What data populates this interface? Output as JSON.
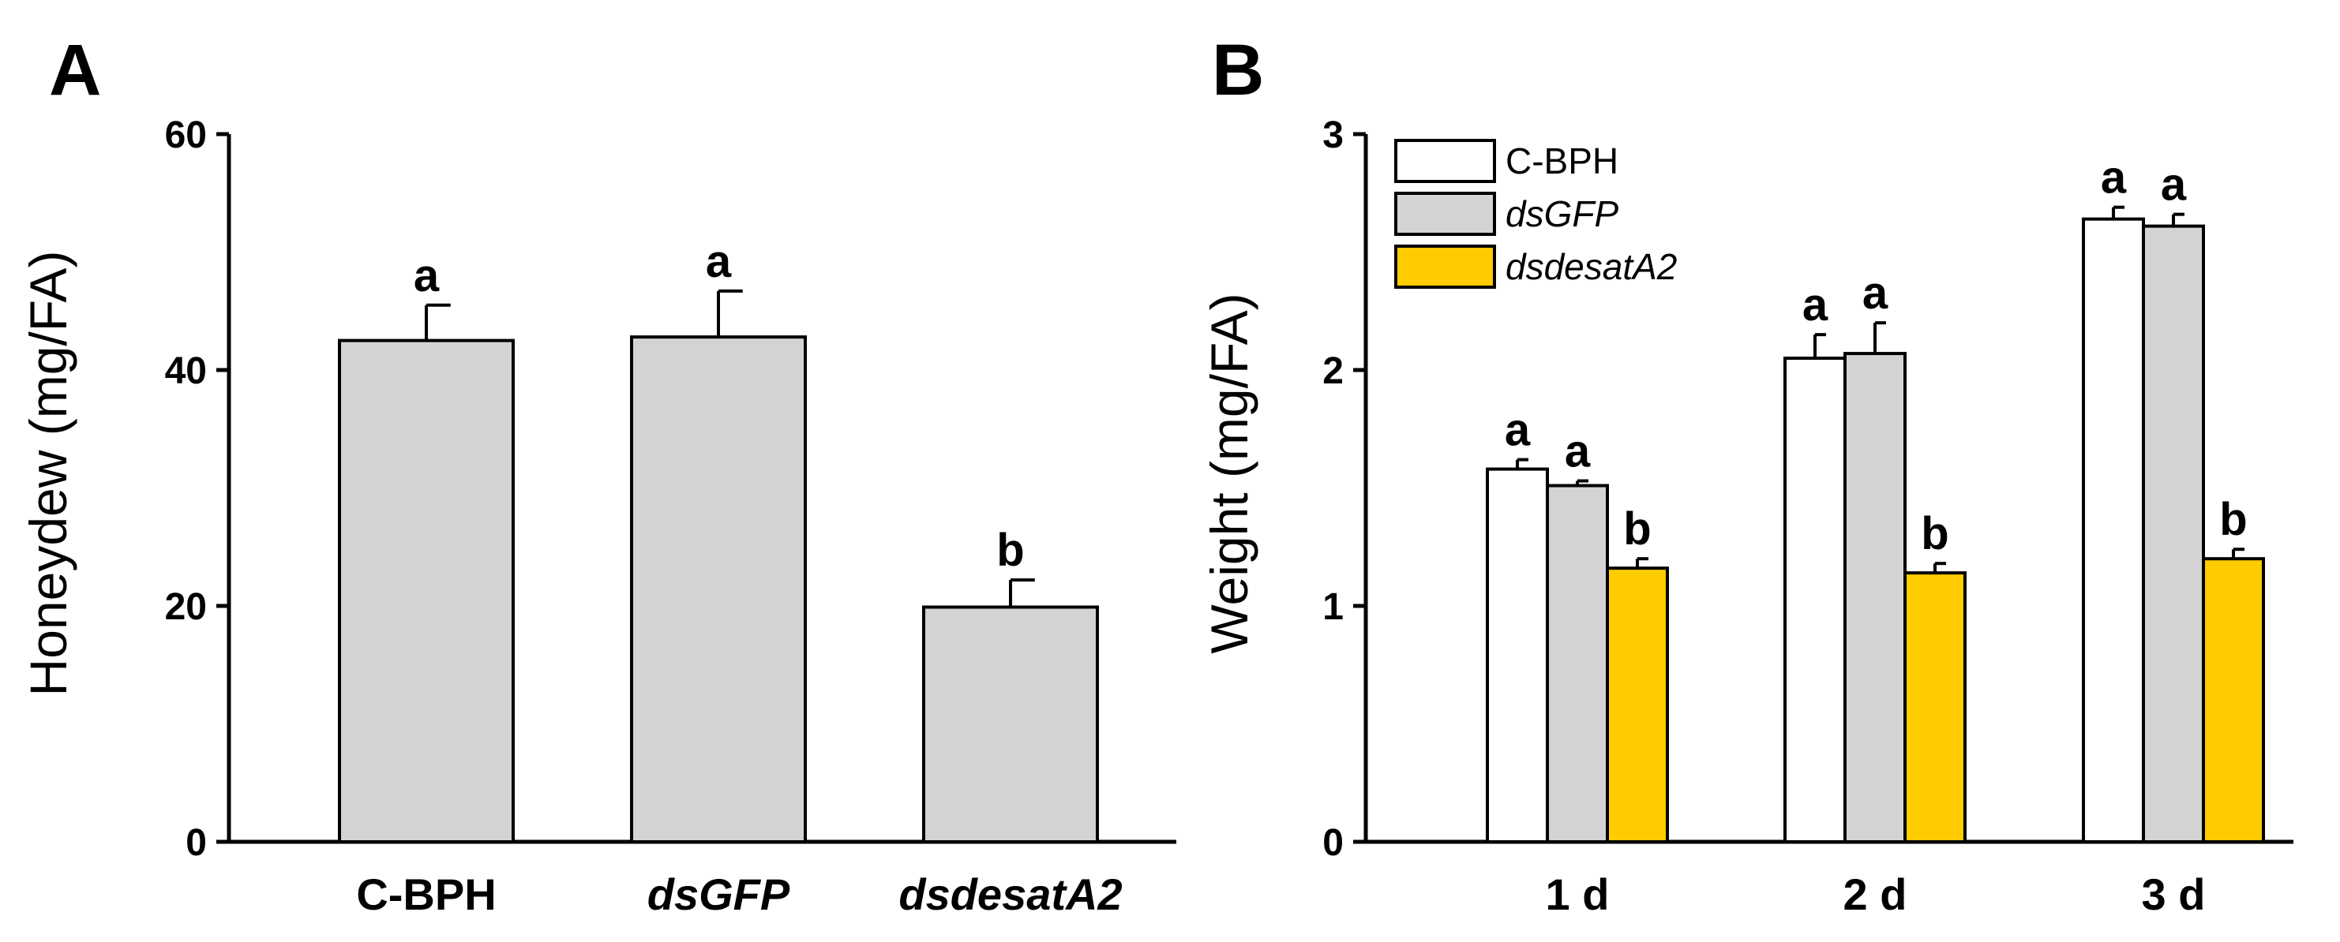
{
  "chart_data": [
    {
      "type": "bar",
      "panel_label": "A",
      "categories": [
        "C-BPH",
        "dsGFP",
        "dsdesatA2"
      ],
      "categories_italic": [
        false,
        true,
        true
      ],
      "values": [
        42.5,
        42.8,
        19.9
      ],
      "errors": [
        3.0,
        3.9,
        2.3
      ],
      "significance_letters": [
        "a",
        "a",
        "b"
      ],
      "bar_color": "#d3d3d3",
      "xlabel": "",
      "ylabel": "Honeydew (mg/FA)",
      "ylim": [
        0,
        60
      ],
      "yticks": [
        0,
        20,
        40,
        60
      ],
      "ytick_labels": [
        "0",
        "20",
        "40",
        "60"
      ]
    },
    {
      "type": "bar",
      "panel_label": "B",
      "categories": [
        "1 d",
        "2 d",
        "3 d"
      ],
      "series": [
        {
          "name": "C-BPH",
          "italic": false,
          "color": "#ffffff",
          "values": [
            1.58,
            2.05,
            2.64
          ],
          "errors": [
            0.04,
            0.1,
            0.05
          ],
          "letters": [
            "a",
            "a",
            "a"
          ]
        },
        {
          "name": "dsGFP",
          "italic": true,
          "color": "#d3d3d3",
          "values": [
            1.51,
            2.07,
            2.61
          ],
          "errors": [
            0.02,
            0.13,
            0.05
          ],
          "letters": [
            "a",
            "a",
            "a"
          ]
        },
        {
          "name": "dsdesatA2",
          "italic": true,
          "color": "#ffcc00",
          "values": [
            1.16,
            1.14,
            1.2
          ],
          "errors": [
            0.04,
            0.04,
            0.04
          ],
          "letters": [
            "b",
            "b",
            "b"
          ]
        }
      ],
      "xlabel": "",
      "ylabel": "Weight (mg/FA)",
      "ylim": [
        0,
        3
      ],
      "yticks": [
        0,
        1,
        2,
        3
      ],
      "ytick_labels": [
        "0",
        "1",
        "2",
        "3"
      ],
      "legend_position": "top-left"
    }
  ]
}
